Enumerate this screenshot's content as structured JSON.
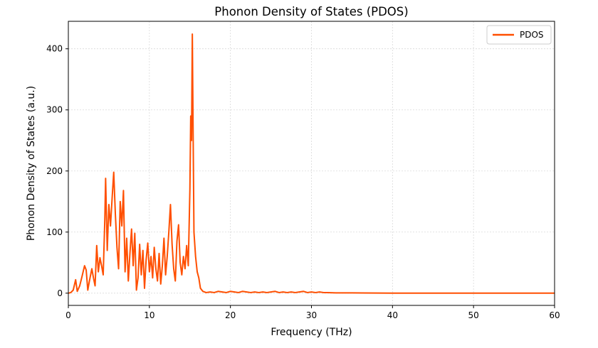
{
  "chart_data": {
    "type": "line",
    "title": "Phonon Density of States (PDOS)",
    "xlabel": "Frequency (THz)",
    "ylabel": "Phonon Density of States (a.u.)",
    "xlim": [
      0,
      60
    ],
    "ylim": [
      -20,
      445
    ],
    "x_ticks": [
      0,
      10,
      20,
      30,
      40,
      50,
      60
    ],
    "y_ticks": [
      0,
      100,
      200,
      300,
      400
    ],
    "grid": true,
    "legend_position": "top-right",
    "series": [
      {
        "name": "PDOS",
        "color": "#ff4f00",
        "points": [
          [
            0.0,
            0
          ],
          [
            0.3,
            1
          ],
          [
            0.6,
            5
          ],
          [
            0.9,
            22
          ],
          [
            1.1,
            3
          ],
          [
            1.4,
            12
          ],
          [
            1.7,
            28
          ],
          [
            2.0,
            45
          ],
          [
            2.2,
            38
          ],
          [
            2.4,
            5
          ],
          [
            2.6,
            20
          ],
          [
            2.9,
            40
          ],
          [
            3.1,
            25
          ],
          [
            3.3,
            12
          ],
          [
            3.5,
            78
          ],
          [
            3.7,
            35
          ],
          [
            3.9,
            58
          ],
          [
            4.1,
            45
          ],
          [
            4.3,
            30
          ],
          [
            4.5,
            120
          ],
          [
            4.6,
            188
          ],
          [
            4.8,
            70
          ],
          [
            5.0,
            145
          ],
          [
            5.2,
            110
          ],
          [
            5.4,
            155
          ],
          [
            5.6,
            198
          ],
          [
            5.8,
            130
          ],
          [
            6.0,
            75
          ],
          [
            6.2,
            40
          ],
          [
            6.4,
            150
          ],
          [
            6.6,
            110
          ],
          [
            6.8,
            168
          ],
          [
            7.0,
            35
          ],
          [
            7.2,
            90
          ],
          [
            7.4,
            20
          ],
          [
            7.6,
            65
          ],
          [
            7.8,
            105
          ],
          [
            8.0,
            45
          ],
          [
            8.2,
            98
          ],
          [
            8.4,
            5
          ],
          [
            8.6,
            25
          ],
          [
            8.8,
            80
          ],
          [
            9.0,
            30
          ],
          [
            9.2,
            70
          ],
          [
            9.4,
            8
          ],
          [
            9.6,
            55
          ],
          [
            9.8,
            82
          ],
          [
            10.0,
            35
          ],
          [
            10.2,
            60
          ],
          [
            10.4,
            25
          ],
          [
            10.6,
            75
          ],
          [
            10.8,
            40
          ],
          [
            11.0,
            20
          ],
          [
            11.2,
            65
          ],
          [
            11.4,
            15
          ],
          [
            11.6,
            45
          ],
          [
            11.8,
            90
          ],
          [
            12.0,
            30
          ],
          [
            12.2,
            60
          ],
          [
            12.4,
            100
          ],
          [
            12.6,
            145
          ],
          [
            12.8,
            80
          ],
          [
            13.0,
            40
          ],
          [
            13.2,
            20
          ],
          [
            13.4,
            85
          ],
          [
            13.6,
            112
          ],
          [
            13.8,
            50
          ],
          [
            14.0,
            30
          ],
          [
            14.2,
            60
          ],
          [
            14.4,
            40
          ],
          [
            14.6,
            78
          ],
          [
            14.8,
            45
          ],
          [
            15.0,
            170
          ],
          [
            15.1,
            290
          ],
          [
            15.2,
            250
          ],
          [
            15.3,
            424
          ],
          [
            15.4,
            260
          ],
          [
            15.5,
            100
          ],
          [
            15.7,
            60
          ],
          [
            15.9,
            35
          ],
          [
            16.1,
            25
          ],
          [
            16.3,
            8
          ],
          [
            16.6,
            3
          ],
          [
            17.0,
            1
          ],
          [
            17.5,
            2
          ],
          [
            18.0,
            1
          ],
          [
            18.5,
            3
          ],
          [
            19.0,
            2
          ],
          [
            19.5,
            1
          ],
          [
            20.0,
            3
          ],
          [
            20.5,
            2
          ],
          [
            21.0,
            1
          ],
          [
            21.5,
            3
          ],
          [
            22.0,
            2
          ],
          [
            22.5,
            1
          ],
          [
            23.0,
            2
          ],
          [
            23.5,
            1
          ],
          [
            24.0,
            2
          ],
          [
            24.5,
            1
          ],
          [
            25.0,
            2
          ],
          [
            25.5,
            3
          ],
          [
            26.0,
            1
          ],
          [
            26.5,
            2
          ],
          [
            27.0,
            1
          ],
          [
            27.5,
            2
          ],
          [
            28.0,
            1
          ],
          [
            28.5,
            2
          ],
          [
            29.0,
            3
          ],
          [
            29.5,
            1
          ],
          [
            30.0,
            2
          ],
          [
            30.5,
            1
          ],
          [
            31.0,
            2
          ],
          [
            31.5,
            1
          ],
          [
            32.0,
            1
          ],
          [
            33.0,
            0.5
          ],
          [
            35.0,
            0.5
          ],
          [
            40.0,
            0
          ],
          [
            45.0,
            0
          ],
          [
            50.0,
            0
          ],
          [
            55.0,
            0
          ],
          [
            60.0,
            0
          ]
        ]
      }
    ]
  }
}
